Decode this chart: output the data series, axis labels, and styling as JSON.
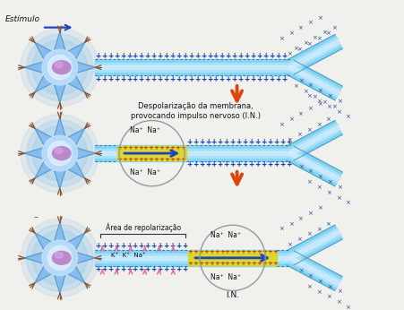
{
  "bg_color": "#f0f0ec",
  "title_label1": "Despolarização da membrana,",
  "title_label2": "provocando impulso nervoso (I.N.)",
  "area_label": "Área de repolarização",
  "IN_label": "I.N.",
  "estimulo_label": "Estímulo",
  "k_label": "K⁺  K⁺  Na⁺",
  "axon_outer": "#7ed4f4",
  "axon_mid": "#a8e0f8",
  "axon_inner_hl": "#d8f0ff",
  "cell_blue_dark": "#3388cc",
  "cell_blue_mid": "#66aadd",
  "cell_blue_light": "#aaccee",
  "cell_white": "#e8f4ff",
  "nucleus_color": "#bb88cc",
  "nucleus_light": "#ddaaee",
  "yellow_zone": "#d8d830",
  "arrow_red": "#dd4410",
  "arrow_blue": "#2244bb",
  "plus_dark": "#1133aa",
  "plus_red": "#cc3300",
  "cross_blue": "#334499",
  "dendrite_brown": "#885533",
  "fork_edge": "#5599bb",
  "text_dark": "#111111",
  "dashed_color": "#336699"
}
